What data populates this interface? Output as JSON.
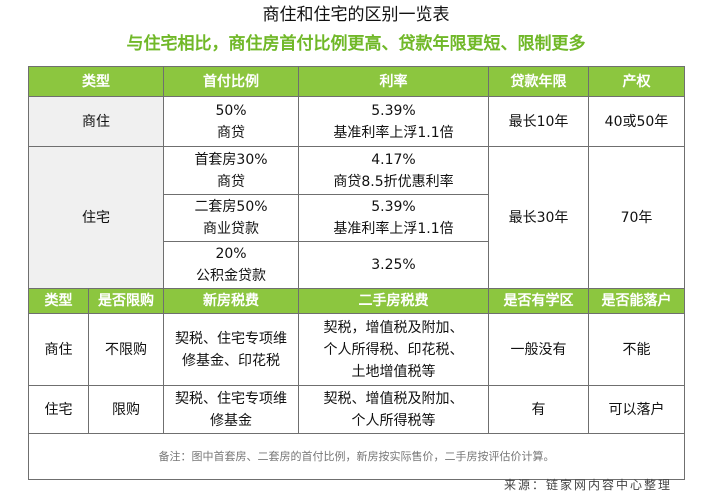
{
  "title": "商住和住宅的区别一览表",
  "subtitle": "与住宅相比，商住房首付比例更高、贷款年限更短、限制更多",
  "table1": {
    "headers": [
      "类型",
      "首付比例",
      "利率",
      "贷款年限",
      "产权"
    ],
    "shangzhu": {
      "type": "商住",
      "down_1": "50%",
      "down_2": "商贷",
      "rate_1": "5.39%",
      "rate_2": "基准利率上浮1.1倍",
      "term": "最长10年",
      "property": "40或50年"
    },
    "zhuzhai": {
      "type": "住宅",
      "term": "最长30年",
      "property": "70年",
      "rows": [
        {
          "down_1": "首套房30%",
          "down_2": "商贷",
          "rate_1": "4.17%",
          "rate_2": "商贷8.5折优惠利率"
        },
        {
          "down_1": "二套房50%",
          "down_2": "商业贷款",
          "rate_1": "5.39%",
          "rate_2": "基准利率上浮1.1倍"
        },
        {
          "down_1": "20%",
          "down_2": "公积金贷款",
          "rate_1": "3.25%",
          "rate_2": ""
        }
      ]
    }
  },
  "table2": {
    "headers": [
      "类型",
      "是否限购",
      "新房税费",
      "二手房税费",
      "是否有学区",
      "是否能落户"
    ],
    "rows": [
      {
        "type": "商住",
        "limit": "不限购",
        "new_tax_1": "契税、住宅专项维",
        "new_tax_2": "修基金、印花税",
        "used_tax_1": "契税，增值税及附加、",
        "used_tax_2": "个人所得税、印花税、",
        "used_tax_3": "土地增值税等",
        "school": "一般没有",
        "hukou": "不能"
      },
      {
        "type": "住宅",
        "limit": "限购",
        "new_tax_1": "契税、住宅专项维",
        "new_tax_2": "修基金",
        "used_tax_1": "契税、增值税及附加、",
        "used_tax_2": "个人所得税等",
        "used_tax_3": "",
        "school": "有",
        "hukou": "可以落户"
      }
    ]
  },
  "note": "备注：图中首套房、二套房的首付比例，新房按实际售价，二手房按评估价计算。",
  "source": "来源：链家网内容中心整理"
}
